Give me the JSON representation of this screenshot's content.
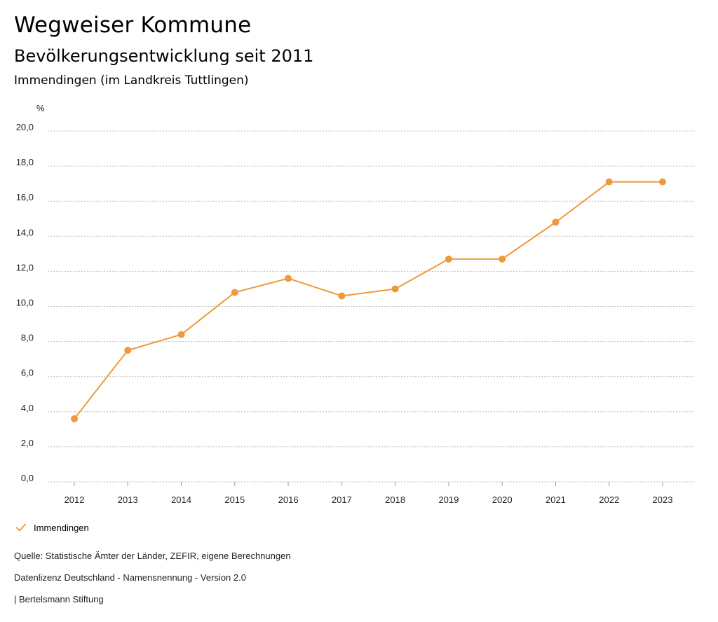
{
  "header": {
    "title": "Wegweiser Kommune",
    "subtitle": "Bevölkerungsentwicklung seit 2011",
    "region": "Immendingen (im Landkreis Tuttlingen)"
  },
  "chart_data": {
    "type": "line",
    "title": "Bevölkerungsentwicklung seit 2011",
    "ylabel": "%",
    "xlabel": "",
    "ylim": [
      0,
      20
    ],
    "ytick_values": [
      0,
      2,
      4,
      6,
      8,
      10,
      12,
      14,
      16,
      18,
      20
    ],
    "ytick_labels": [
      "0,0",
      "2,0",
      "4,0",
      "6,0",
      "8,0",
      "10,0",
      "12,0",
      "14,0",
      "16,0",
      "18,0",
      "20,0"
    ],
    "categories": [
      "2012",
      "2013",
      "2014",
      "2015",
      "2016",
      "2017",
      "2018",
      "2019",
      "2020",
      "2021",
      "2022",
      "2023"
    ],
    "series": [
      {
        "name": "Immendingen",
        "color": "#f0993b",
        "values": [
          3.6,
          7.5,
          8.4,
          10.8,
          11.6,
          10.6,
          11.0,
          12.7,
          12.7,
          14.8,
          17.1,
          17.1
        ]
      }
    ],
    "grid": true,
    "legend_position": "bottom-left"
  },
  "legend": {
    "label": "Immendingen"
  },
  "footer": {
    "source": "Quelle: Statistische Ämter der Länder, ZEFIR, eigene Berechnungen",
    "license": "Datenlizenz Deutschland - Namensnennung - Version 2.0",
    "publisher": "| Bertelsmann Stiftung"
  },
  "colors": {
    "series": "#f0993b",
    "grid": "#bdbdbd",
    "axis": "#9e9e9e"
  }
}
